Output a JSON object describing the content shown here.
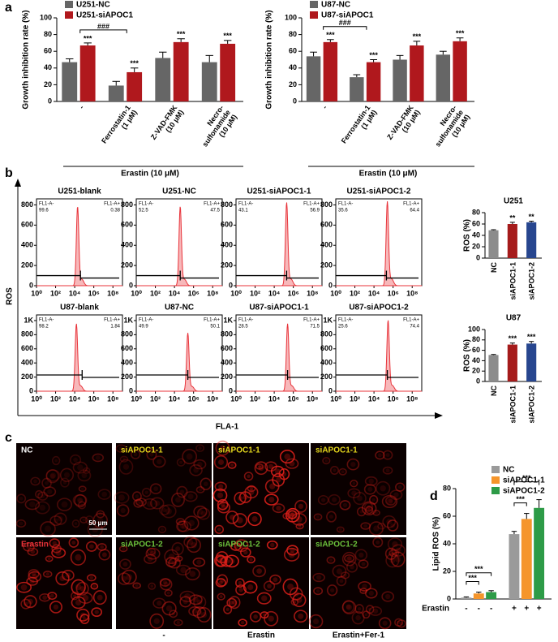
{
  "panel_labels": [
    "a",
    "b",
    "c",
    "d"
  ],
  "flow_axes": {
    "ylabel": "ROS",
    "xlabel": "FLA-1"
  },
  "micrographs": {
    "labels": [
      "NC",
      "siAPOC1-1",
      "siAPOC1-1",
      "siAPOC1-1",
      "Erastin",
      "siAPOC1-2",
      "siAPOC1-2",
      "siAPOC1-2"
    ],
    "label_colors": [
      "#ffffff",
      "#e6d81c",
      "#e6d81c",
      "#e6d81c",
      "#e8333a",
      "#6cc23c",
      "#6cc23c",
      "#6cc23c"
    ],
    "scale_bar": "50 μm",
    "conditions": [
      "-",
      "Erastin",
      "Erastin+Fer-1"
    ]
  },
  "chart_data": [
    {
      "type": "bar",
      "ylabel": "Growth inhibition rate (%)",
      "categories": [
        [
          "-"
        ],
        [
          "Ferrostatin-1",
          "(1 μM)"
        ],
        [
          "Z-VAD-FMK",
          "(10 μM)"
        ],
        [
          "Necro-",
          "sulfonamide",
          "(10 μM)"
        ]
      ],
      "series": [
        {
          "name": "U251-NC",
          "color": "#666666",
          "values": [
            47,
            19,
            52,
            47
          ],
          "errors": [
            4,
            5,
            7,
            8
          ]
        },
        {
          "name": "U251-siAPOC1",
          "color": "#b0181d",
          "values": [
            67,
            35,
            71,
            69
          ],
          "errors": [
            3,
            5,
            4,
            4
          ],
          "significance": [
            "***",
            "***",
            "***",
            "***"
          ]
        }
      ],
      "comparisons": [
        {
          "label": "###",
          "from": 0,
          "to": 1
        }
      ],
      "group_label": "Erastin (10 μM)",
      "ylim": [
        0,
        100
      ],
      "yticks": [
        0,
        20,
        40,
        60,
        80,
        100
      ],
      "legend": "top-left"
    },
    {
      "type": "bar",
      "ylabel": "Growth inhibition rate (%)",
      "categories": [
        [
          "-"
        ],
        [
          "Ferrostatin-1",
          "(1 μM)"
        ],
        [
          "Z-VAD-FMK",
          "(10 μM)"
        ],
        [
          "Necro-",
          "sulfonamide",
          "(10 μM)"
        ]
      ],
      "series": [
        {
          "name": "U87-NC",
          "color": "#666666",
          "values": [
            54,
            29,
            50,
            56
          ],
          "errors": [
            5,
            3,
            5,
            4
          ]
        },
        {
          "name": "U87-siAPOC1",
          "color": "#b0181d",
          "values": [
            71,
            47,
            67,
            72
          ],
          "errors": [
            3,
            3,
            5,
            4
          ],
          "significance": [
            "***",
            "***",
            "***",
            "***"
          ]
        }
      ],
      "comparisons": [
        {
          "label": "###",
          "from": 0,
          "to": 1
        }
      ],
      "group_label": "Erastin (10 μM)",
      "ylim": [
        0,
        100
      ],
      "yticks": [
        0,
        20,
        40,
        60,
        80,
        100
      ],
      "legend": "top-left"
    },
    {
      "type": "area",
      "title": "U251-blank",
      "categories": [
        "FL1-A-",
        "FL1-A+"
      ],
      "values": [
        99.6,
        0.38
      ],
      "color": "#e8333a",
      "peak_x": 20000,
      "peak_count": 780,
      "gate_x": 40000,
      "gate_y": 100,
      "log_x": true,
      "xlim": [
        1,
        1000000000
      ],
      "xticks": [
        {
          "value": 1,
          "label": "10⁰"
        },
        {
          "value": 100,
          "label": "10²"
        },
        {
          "value": 10000,
          "label": "10⁴"
        },
        {
          "value": 1000000,
          "label": "10⁶"
        },
        {
          "value": 100000000,
          "label": "10⁸"
        }
      ],
      "ylim": [
        0,
        860
      ],
      "yticks": [
        0,
        200,
        400,
        600,
        800
      ]
    },
    {
      "type": "area",
      "title": "U251-NC",
      "categories": [
        "FL1-A-",
        "FL1-A+"
      ],
      "values": [
        52.5,
        47.5
      ],
      "color": "#e8333a",
      "peak_x": 40000,
      "peak_count": 780,
      "gate_x": 40000,
      "gate_y": 100,
      "log_x": true,
      "xlim": [
        1,
        1000000000
      ],
      "xticks": [
        {
          "value": 1,
          "label": "10⁰"
        },
        {
          "value": 100,
          "label": "10²"
        },
        {
          "value": 10000,
          "label": "10⁴"
        },
        {
          "value": 1000000,
          "label": "10⁶"
        },
        {
          "value": 100000000,
          "label": "10⁸"
        }
      ],
      "ylim": [
        0,
        860
      ],
      "yticks": [
        0,
        200,
        400,
        600,
        800
      ]
    },
    {
      "type": "area",
      "title": "U251-siAPOC1-1",
      "categories": [
        "FL1-A-",
        "FL1-A+"
      ],
      "values": [
        43.1,
        56.9
      ],
      "color": "#e8333a",
      "peak_x": 200000,
      "peak_count": 820,
      "gate_x": 200000,
      "gate_y": 100,
      "log_x": true,
      "xlim": [
        1,
        1000000000
      ],
      "xticks": [
        {
          "value": 1,
          "label": "10⁰"
        },
        {
          "value": 100,
          "label": "10²"
        },
        {
          "value": 10000,
          "label": "10⁴"
        },
        {
          "value": 1000000,
          "label": "10⁶"
        },
        {
          "value": 100000000,
          "label": "10⁸"
        }
      ],
      "ylim": [
        0,
        860
      ],
      "yticks": [
        0,
        200,
        400,
        600,
        800
      ]
    },
    {
      "type": "area",
      "title": "U251-siAPOC1-2",
      "categories": [
        "FL1-A-",
        "FL1-A+"
      ],
      "values": [
        35.6,
        64.4
      ],
      "color": "#e8333a",
      "peak_x": 250000,
      "peak_count": 830,
      "gate_x": 200000,
      "gate_y": 100,
      "log_x": true,
      "xlim": [
        1,
        1000000000
      ],
      "xticks": [
        {
          "value": 1,
          "label": "10⁰"
        },
        {
          "value": 100,
          "label": "10²"
        },
        {
          "value": 10000,
          "label": "10⁴"
        },
        {
          "value": 1000000,
          "label": "10⁶"
        },
        {
          "value": 100000000,
          "label": "10⁸"
        }
      ],
      "ylim": [
        0,
        860
      ],
      "yticks": [
        0,
        200,
        400,
        600,
        800
      ]
    },
    {
      "type": "area",
      "title": "U87-blank",
      "categories": [
        "FL1-A-",
        "FL1-A+"
      ],
      "values": [
        98.2,
        1.84
      ],
      "color": "#e8333a",
      "peak_x": 15000,
      "peak_count": 950,
      "gate_x": 60000,
      "gate_y": 230,
      "log_x": true,
      "xlim": [
        1,
        1000000000
      ],
      "xticks": [
        {
          "value": 1,
          "label": "10⁰"
        },
        {
          "value": 100,
          "label": "10²"
        },
        {
          "value": 10000,
          "label": "10⁴"
        },
        {
          "value": 1000000,
          "label": "10⁶"
        },
        {
          "value": 100000000,
          "label": "10⁸"
        }
      ],
      "ylim": [
        0,
        1080
      ],
      "yticks": [
        0,
        200,
        400,
        600,
        800,
        {
          "value": 1000,
          "label": "1K"
        }
      ]
    },
    {
      "type": "area",
      "title": "U87-NC",
      "categories": [
        "FL1-A-",
        "FL1-A+"
      ],
      "values": [
        49.9,
        50.1
      ],
      "color": "#e8333a",
      "peak_x": 250000,
      "peak_count": 820,
      "gate_x": 250000,
      "gate_y": 230,
      "log_x": true,
      "xlim": [
        1,
        1000000000
      ],
      "xticks": [
        {
          "value": 1,
          "label": "10⁰"
        },
        {
          "value": 100,
          "label": "10²"
        },
        {
          "value": 10000,
          "label": "10⁴"
        },
        {
          "value": 1000000,
          "label": "10⁶"
        },
        {
          "value": 100000000,
          "label": "10⁸"
        }
      ],
      "ylim": [
        0,
        1080
      ],
      "yticks": [
        0,
        200,
        400,
        600,
        800,
        {
          "value": 1000,
          "label": "1K"
        }
      ]
    },
    {
      "type": "area",
      "title": "U87-siAPOC1-1",
      "categories": [
        "FL1-A-",
        "FL1-A+"
      ],
      "values": [
        28.5,
        71.5
      ],
      "color": "#e8333a",
      "peak_x": 250000,
      "peak_count": 950,
      "gate_x": 250000,
      "gate_y": 230,
      "log_x": true,
      "xlim": [
        1,
        1000000000
      ],
      "xticks": [
        {
          "value": 1,
          "label": "10⁰"
        },
        {
          "value": 100,
          "label": "10²"
        },
        {
          "value": 10000,
          "label": "10⁴"
        },
        {
          "value": 1000000,
          "label": "10⁶"
        },
        {
          "value": 100000000,
          "label": "10⁸"
        }
      ],
      "ylim": [
        0,
        1080
      ],
      "yticks": [
        0,
        200,
        400,
        600,
        800,
        {
          "value": 1000,
          "label": "1K"
        }
      ]
    },
    {
      "type": "area",
      "title": "U87-siAPOC1-2",
      "categories": [
        "FL1-A-",
        "FL1-A+"
      ],
      "values": [
        25.6,
        74.4
      ],
      "color": "#e8333a",
      "peak_x": 300000,
      "peak_count": 1000,
      "gate_x": 250000,
      "gate_y": 230,
      "log_x": true,
      "xlim": [
        1,
        1000000000
      ],
      "xticks": [
        {
          "value": 1,
          "label": "10⁰"
        },
        {
          "value": 100,
          "label": "10²"
        },
        {
          "value": 10000,
          "label": "10⁴"
        },
        {
          "value": 1000000,
          "label": "10⁶"
        },
        {
          "value": 100000000,
          "label": "10⁸"
        }
      ],
      "ylim": [
        0,
        1080
      ],
      "yticks": [
        0,
        200,
        400,
        600,
        800,
        {
          "value": 1000,
          "label": "1K"
        }
      ]
    },
    {
      "type": "bar",
      "title": "U251",
      "ylabel": "ROS (%)",
      "categories": [
        "NC",
        "siAPOC1-1",
        "siAPOC1-2"
      ],
      "colors": [
        "#8c8c8c",
        "#a51b1b",
        "#27468f"
      ],
      "series": [
        {
          "values": [
            49,
            60,
            63
          ],
          "errors": [
            1,
            3,
            2
          ],
          "significance": [
            null,
            "**",
            "**"
          ]
        }
      ],
      "ylim": [
        0,
        80
      ],
      "yticks": [
        0,
        20,
        40,
        60,
        80
      ]
    },
    {
      "type": "bar",
      "title": "U87",
      "ylabel": "ROS (%)",
      "categories": [
        "NC",
        "siAPOC1-1",
        "siAPOC1-2"
      ],
      "colors": [
        "#8c8c8c",
        "#a51b1b",
        "#27468f"
      ],
      "series": [
        {
          "values": [
            51,
            71,
            73
          ],
          "errors": [
            1,
            3,
            4
          ],
          "significance": [
            null,
            "***",
            "***"
          ]
        }
      ],
      "ylim": [
        0,
        100
      ],
      "yticks": [
        0,
        20,
        40,
        60,
        80,
        100
      ]
    },
    {
      "type": "bar",
      "ylabel": "Lipid ROS (%)",
      "row_label": "Erastin",
      "series": [
        {
          "name": "NC",
          "color": "#9a9a9a",
          "values": [
            1,
            47
          ],
          "errors": [
            0.5,
            2
          ],
          "treatment": [
            "-",
            "+"
          ]
        },
        {
          "name": "siAPOC1-1",
          "color": "#f5952b",
          "values": [
            4,
            58
          ],
          "errors": [
            1,
            4
          ],
          "treatment": [
            "-",
            "+"
          ]
        },
        {
          "name": "siAPOC1-2",
          "color": "#2d9b47",
          "values": [
            5,
            66
          ],
          "errors": [
            1,
            6
          ],
          "treatment": [
            "-",
            "+"
          ]
        }
      ],
      "comparisons": [
        {
          "label": "***",
          "group": 0,
          "from": 0,
          "to": 1
        },
        {
          "label": "***",
          "group": 0,
          "from": 0,
          "to": 2
        },
        {
          "label": "***",
          "group": 1,
          "from": 0,
          "to": 1
        },
        {
          "label": "***",
          "group": 1,
          "from": 0,
          "to": 2
        }
      ],
      "ylim": [
        0,
        80
      ],
      "yticks": [
        0,
        20,
        40,
        60,
        80
      ],
      "legend": "top-left"
    }
  ]
}
